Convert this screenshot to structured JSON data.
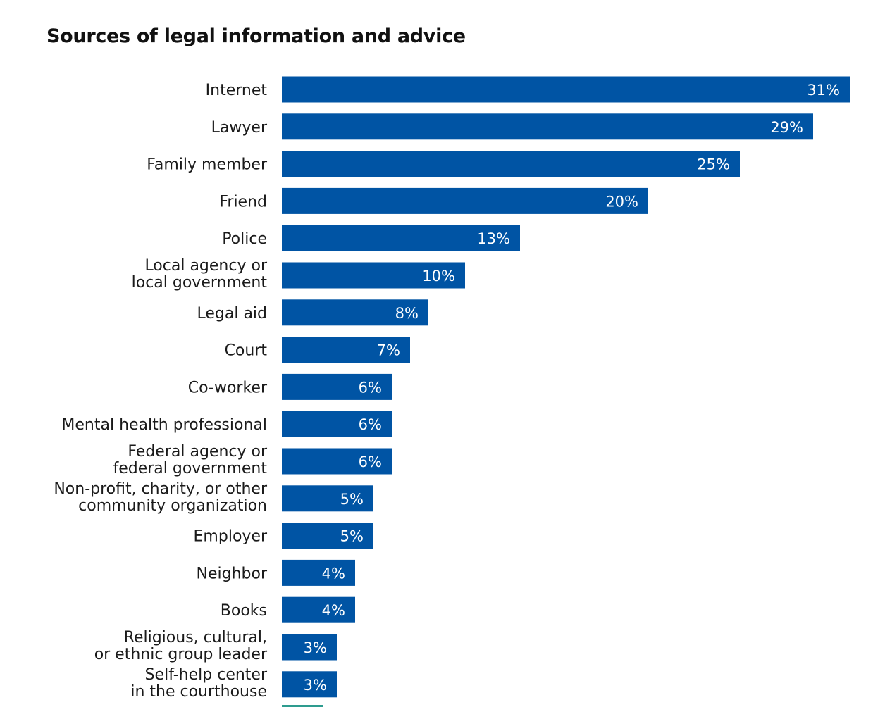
{
  "chart_data": {
    "type": "bar",
    "orientation": "horizontal",
    "title": "Sources of legal information and advice",
    "categories": [
      [
        "Internet"
      ],
      [
        "Lawyer"
      ],
      [
        "Family member"
      ],
      [
        "Friend"
      ],
      [
        "Police"
      ],
      [
        "Local agency or",
        "local government"
      ],
      [
        "Legal aid"
      ],
      [
        "Court"
      ],
      [
        "Co-worker"
      ],
      [
        "Mental health professional"
      ],
      [
        "Federal agency or",
        "federal government"
      ],
      [
        "Non-profit, charity, or other",
        "community organization"
      ],
      [
        "Employer"
      ],
      [
        "Neighbor"
      ],
      [
        "Books"
      ],
      [
        "Religious, cultural,",
        "or ethnic group leader"
      ],
      [
        "Self-help center",
        "in the courthouse"
      ]
    ],
    "values": [
      31,
      29,
      25,
      20,
      13,
      10,
      8,
      7,
      6,
      6,
      6,
      5,
      5,
      4,
      4,
      3,
      3
    ],
    "value_labels": [
      "31%",
      "29%",
      "25%",
      "20%",
      "13%",
      "10%",
      "8%",
      "7%",
      "6%",
      "6%",
      "6%",
      "5%",
      "5%",
      "4%",
      "4%",
      "3%",
      "3%"
    ],
    "unit": "%",
    "xlim": [
      0,
      31
    ],
    "grid": false,
    "legend": "none",
    "bar_color": "#0054a4",
    "cut_off_bar_color": "#2e9c8f"
  }
}
